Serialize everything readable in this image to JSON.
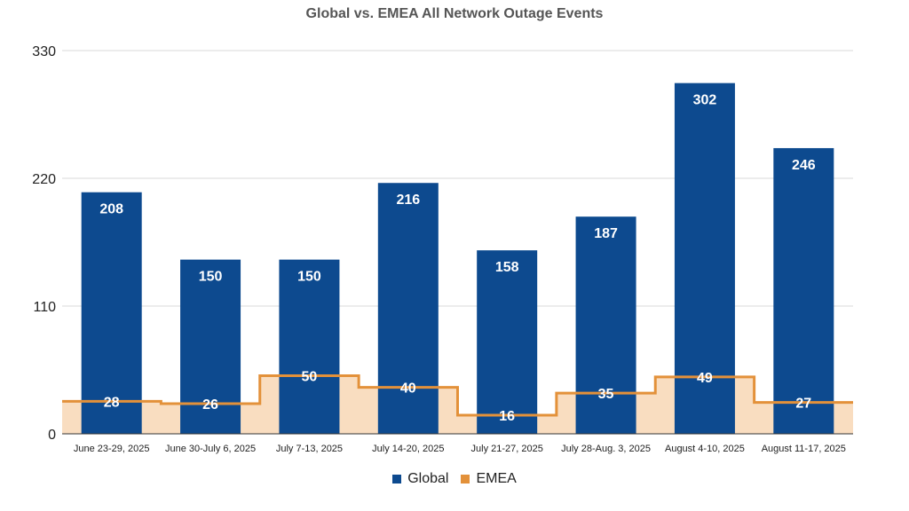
{
  "chart_data": {
    "type": "bar",
    "title": "Global vs. EMEA All Network Outage Events",
    "xlabel": "",
    "ylabel": "",
    "categories": [
      "June 23-29, 2025",
      "June 30-July 6, 2025",
      "July 7-13, 2025",
      "July 14-20, 2025",
      "July 21-27, 2025",
      "July 28-Aug. 3, 2025",
      "August 4-10, 2025",
      "August 11-17, 2025"
    ],
    "series": [
      {
        "name": "Global",
        "type": "bar",
        "color": "#0d4a8f",
        "values": [
          208,
          150,
          150,
          216,
          158,
          187,
          302,
          246
        ]
      },
      {
        "name": "EMEA",
        "type": "stepped-area",
        "color": "#e3913a",
        "fill": "#f9ddc0",
        "values": [
          28,
          26,
          50,
          40,
          16,
          35,
          49,
          27
        ]
      }
    ],
    "ylim": [
      0,
      330
    ],
    "yticks": [
      0,
      110,
      220,
      330
    ],
    "grid": true,
    "legend": "bottom"
  }
}
